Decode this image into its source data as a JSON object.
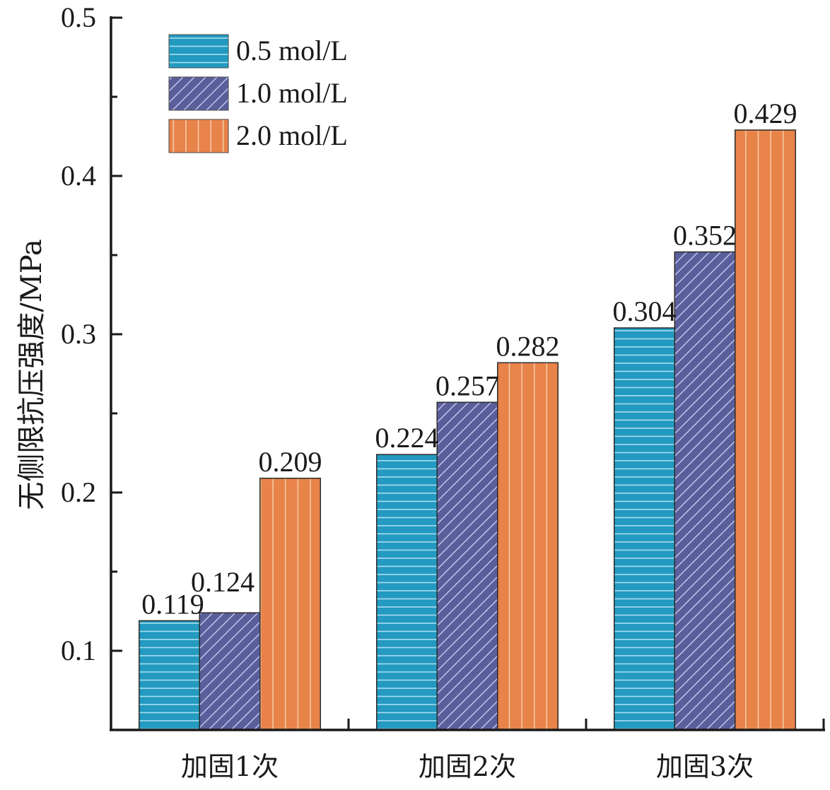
{
  "chart_data": {
    "type": "bar",
    "title": "",
    "xlabel": "",
    "ylabel": "无侧限抗压强度/MPa",
    "categories": [
      "加固1次",
      "加固2次",
      "加固3次"
    ],
    "series": [
      {
        "name": "0.5 mol/L",
        "values": [
          0.119,
          0.224,
          0.304
        ],
        "color": "#239ac0",
        "pattern": "horizontal-lines"
      },
      {
        "name": "1.0 mol/L",
        "values": [
          0.124,
          0.257,
          0.352
        ],
        "color": "#5a5f9b",
        "pattern": "diagonal-lines"
      },
      {
        "name": "2.0 mol/L",
        "values": [
          0.209,
          0.282,
          0.429
        ],
        "color": "#e8834a",
        "pattern": "vertical-lines"
      }
    ],
    "data_labels": [
      [
        "0.119",
        "0.224",
        "0.304"
      ],
      [
        "0.124",
        "0.257",
        "0.352"
      ],
      [
        "0.209",
        "0.282",
        "0.429"
      ]
    ],
    "ylim": [
      0.05,
      0.5
    ],
    "yticks": [
      0.1,
      0.2,
      0.3,
      0.4,
      0.5
    ],
    "ytick_labels": [
      "0.1",
      "0.2",
      "0.3",
      "0.4",
      "0.5"
    ],
    "yminor_ticks": [
      0.15,
      0.25,
      0.35,
      0.45
    ],
    "grid": false,
    "legend_position": "top-left"
  }
}
